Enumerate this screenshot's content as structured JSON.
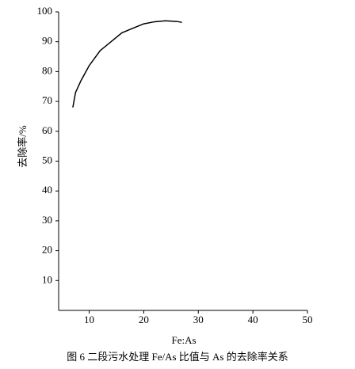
{
  "chart_data": {
    "type": "line",
    "title": "图 6   二段污水处理 Fe/As 比值与 As 的去除率关系",
    "xlabel": "Fe:As",
    "ylabel": "去除率/%",
    "x": [
      7,
      7.5,
      8.5,
      10,
      12,
      14,
      16,
      18,
      20,
      22,
      24,
      26,
      27
    ],
    "values": [
      68,
      73,
      77,
      82,
      87,
      90,
      93,
      94.5,
      96,
      96.7,
      97,
      96.8,
      96.5
    ],
    "color": "#000000",
    "xlim": [
      4.4,
      50
    ],
    "xticks": [
      10,
      20,
      30,
      40,
      50
    ],
    "ylim": [
      0,
      100
    ],
    "yticks": [
      10,
      20,
      30,
      40,
      50,
      60,
      70,
      80,
      90,
      100
    ]
  }
}
